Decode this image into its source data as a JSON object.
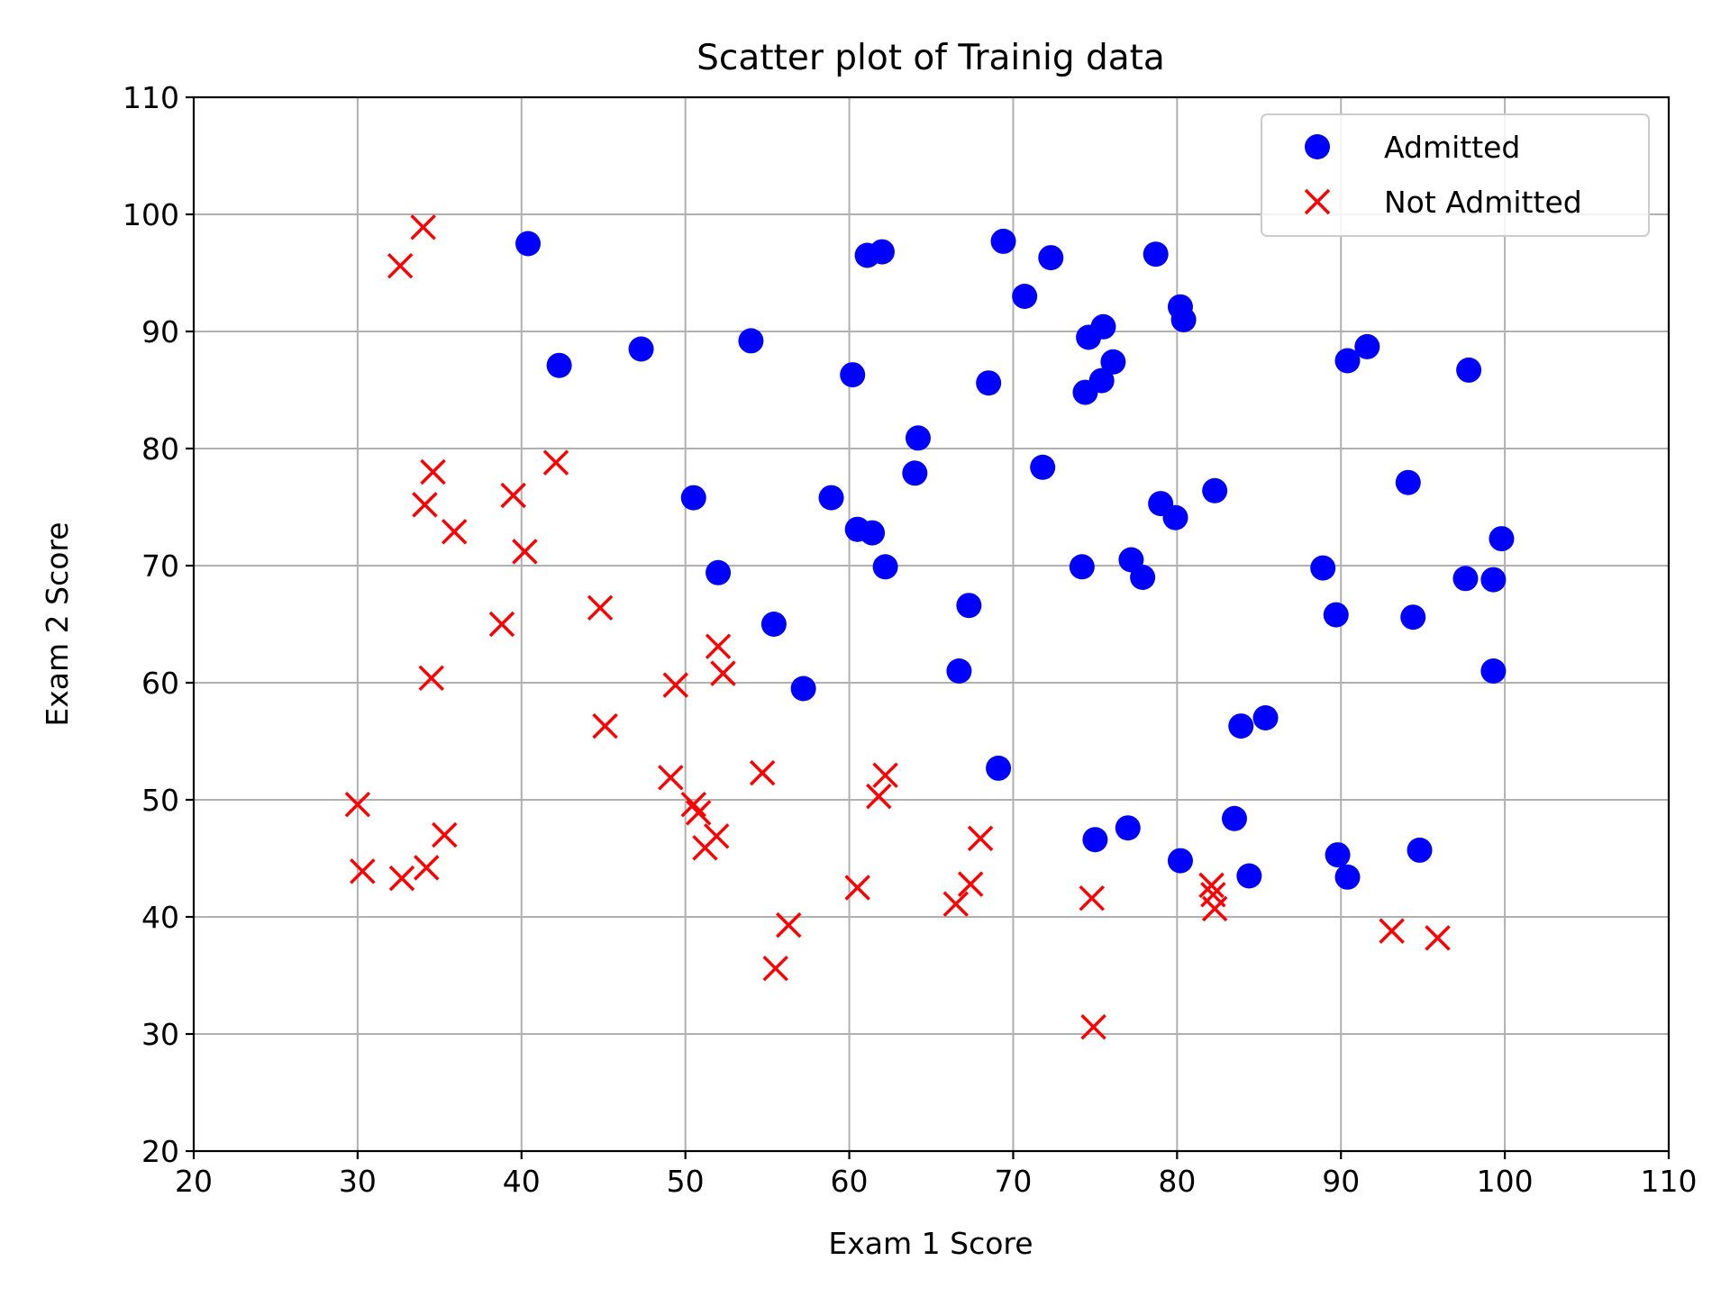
{
  "chart_data": {
    "type": "scatter",
    "title": "Scatter plot of Trainig data",
    "xlabel": "Exam 1 Score",
    "ylabel": "Exam 2 Score",
    "xlim": [
      20,
      110
    ],
    "ylim": [
      20,
      110
    ],
    "xticks": [
      "20",
      "30",
      "40",
      "50",
      "60",
      "70",
      "80",
      "90",
      "100",
      "110"
    ],
    "yticks": [
      "20",
      "30",
      "40",
      "50",
      "60",
      "70",
      "80",
      "90",
      "100",
      "110"
    ],
    "grid": true,
    "legend_position": "top-right",
    "series": [
      {
        "name": "Admitted",
        "marker": "circle",
        "color": "#0000ff",
        "points": [
          [
            40.4,
            97.5
          ],
          [
            42.3,
            87.1
          ],
          [
            47.3,
            88.5
          ],
          [
            54.0,
            89.2
          ],
          [
            61.1,
            96.5
          ],
          [
            62.0,
            96.8
          ],
          [
            69.4,
            97.7
          ],
          [
            70.7,
            93.0
          ],
          [
            72.3,
            96.3
          ],
          [
            78.7,
            96.6
          ],
          [
            80.2,
            92.1
          ],
          [
            80.4,
            91.0
          ],
          [
            74.6,
            89.5
          ],
          [
            75.5,
            90.4
          ],
          [
            76.1,
            87.4
          ],
          [
            75.4,
            85.8
          ],
          [
            74.4,
            84.8
          ],
          [
            60.2,
            86.3
          ],
          [
            68.5,
            85.6
          ],
          [
            64.2,
            80.9
          ],
          [
            64.0,
            77.9
          ],
          [
            71.8,
            78.4
          ],
          [
            50.5,
            75.8
          ],
          [
            58.9,
            75.8
          ],
          [
            60.5,
            73.1
          ],
          [
            61.4,
            72.8
          ],
          [
            62.2,
            69.9
          ],
          [
            52.0,
            69.4
          ],
          [
            55.4,
            65.0
          ],
          [
            57.2,
            59.5
          ],
          [
            67.3,
            66.6
          ],
          [
            66.7,
            61.0
          ],
          [
            69.1,
            52.7
          ],
          [
            74.2,
            69.9
          ],
          [
            77.2,
            70.5
          ],
          [
            77.9,
            69.0
          ],
          [
            79.0,
            75.3
          ],
          [
            79.9,
            74.1
          ],
          [
            82.3,
            76.4
          ],
          [
            88.9,
            69.8
          ],
          [
            89.7,
            65.8
          ],
          [
            90.4,
            87.5
          ],
          [
            91.6,
            88.7
          ],
          [
            97.8,
            86.7
          ],
          [
            94.1,
            77.1
          ],
          [
            94.4,
            65.6
          ],
          [
            97.6,
            68.9
          ],
          [
            99.3,
            68.8
          ],
          [
            99.8,
            72.3
          ],
          [
            99.3,
            61.0
          ],
          [
            83.9,
            56.3
          ],
          [
            85.4,
            57.0
          ],
          [
            75.0,
            46.6
          ],
          [
            77.0,
            47.6
          ],
          [
            80.2,
            44.8
          ],
          [
            83.5,
            48.4
          ],
          [
            84.4,
            43.5
          ],
          [
            89.8,
            45.3
          ],
          [
            90.4,
            43.4
          ],
          [
            94.8,
            45.7
          ]
        ]
      },
      {
        "name": "Not Admitted",
        "marker": "x",
        "color": "#ff0000",
        "points": [
          [
            34.0,
            98.9
          ],
          [
            32.6,
            95.6
          ],
          [
            34.6,
            78.0
          ],
          [
            42.1,
            78.8
          ],
          [
            39.5,
            76.0
          ],
          [
            34.1,
            75.2
          ],
          [
            35.9,
            72.9
          ],
          [
            40.2,
            71.2
          ],
          [
            44.8,
            66.4
          ],
          [
            38.8,
            65.0
          ],
          [
            34.5,
            60.4
          ],
          [
            49.4,
            59.8
          ],
          [
            52.0,
            63.1
          ],
          [
            52.3,
            60.8
          ],
          [
            45.1,
            56.3
          ],
          [
            30.0,
            49.6
          ],
          [
            49.1,
            51.9
          ],
          [
            54.7,
            52.3
          ],
          [
            50.5,
            49.6
          ],
          [
            50.8,
            48.9
          ],
          [
            51.9,
            46.9
          ],
          [
            51.2,
            45.9
          ],
          [
            62.2,
            52.1
          ],
          [
            61.8,
            50.3
          ],
          [
            35.3,
            47.0
          ],
          [
            30.3,
            43.9
          ],
          [
            32.7,
            43.3
          ],
          [
            34.2,
            44.2
          ],
          [
            56.3,
            39.3
          ],
          [
            55.5,
            35.6
          ],
          [
            60.5,
            42.5
          ],
          [
            66.5,
            41.1
          ],
          [
            67.4,
            42.8
          ],
          [
            68.0,
            46.7
          ],
          [
            74.8,
            41.6
          ],
          [
            74.9,
            30.6
          ],
          [
            82.1,
            42.7
          ],
          [
            82.3,
            40.7
          ],
          [
            82.2,
            41.9
          ],
          [
            93.1,
            38.8
          ],
          [
            95.9,
            38.2
          ]
        ]
      }
    ]
  }
}
